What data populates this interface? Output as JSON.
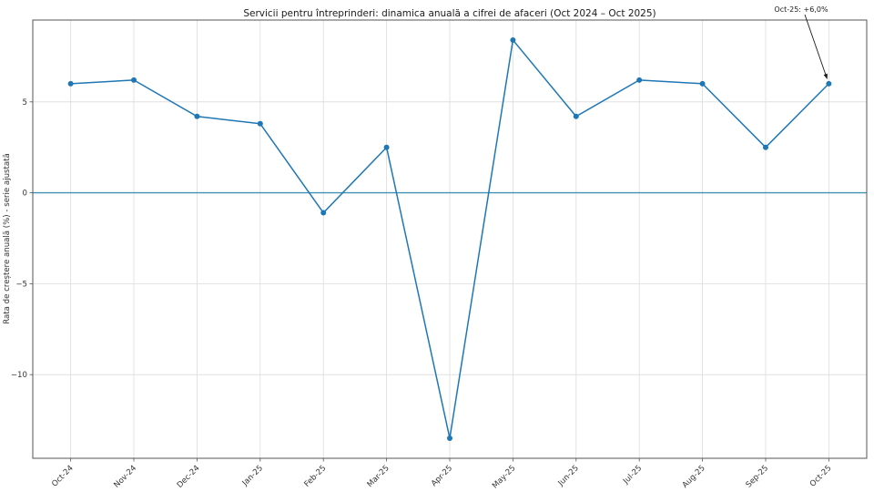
{
  "chart_data": {
    "type": "line",
    "title": "Servicii pentru întreprinderi: dinamica anuală a cifrei de afaceri (Oct 2024 – Oct 2025)",
    "ylabel": "Rata de creștere anuală (%) - serie ajustată",
    "xlabel": "",
    "categories": [
      "Oct-24",
      "Nov-24",
      "Dec-24",
      "Jan-25",
      "Feb-25",
      "Mar-25",
      "Apr-25",
      "May-25",
      "Jun-25",
      "Jul-25",
      "Aug-25",
      "Sep-25",
      "Oct-25"
    ],
    "series": [
      {
        "name": "Rata de creștere anuală (%) - serie ajustată",
        "values": [
          6.0,
          6.2,
          4.2,
          3.8,
          -1.1,
          2.5,
          -13.5,
          8.4,
          4.2,
          6.2,
          6.0,
          2.5,
          6.0
        ]
      }
    ],
    "yticks": [
      {
        "value": 5,
        "label": "5"
      },
      {
        "value": 0,
        "label": "0"
      },
      {
        "value": -5,
        "label": "−5"
      },
      {
        "value": -10,
        "label": "−10"
      }
    ],
    "ylim": [
      -14.6,
      9.5
    ],
    "x_margin_units": 0.6,
    "grid": true,
    "legend": "none",
    "zero_line_value": 0,
    "annotation": {
      "text": "Oct-25: +6,0%",
      "target_index": 12,
      "target_value": 6.0
    },
    "colors": {
      "line": "#1f77b4",
      "marker": "#1f77b4",
      "zero_line": "#4191b5",
      "grid": "#dcdcdc",
      "spine": "#555555",
      "text": "#1a1a1a",
      "background": "#ffffff"
    }
  }
}
